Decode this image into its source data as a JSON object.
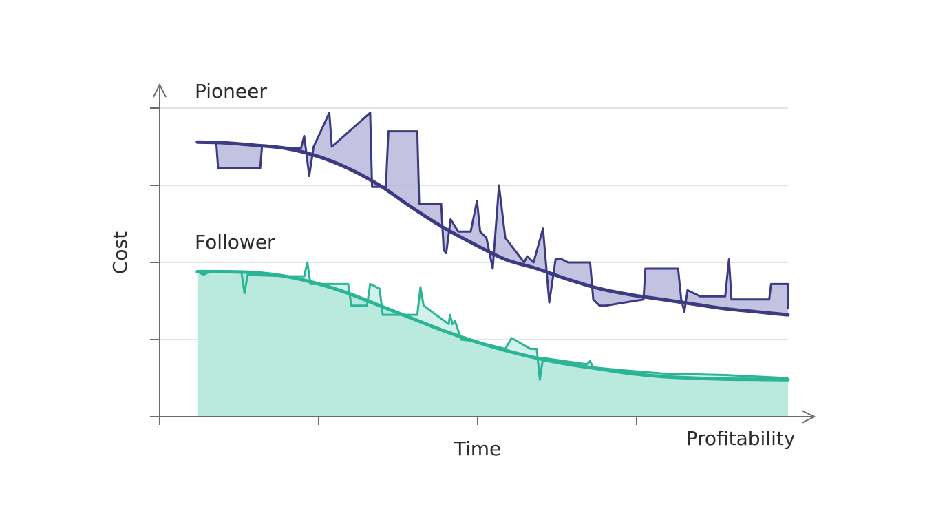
{
  "chart_data": {
    "type": "line",
    "title": "",
    "xlabel": "Time",
    "ylabel": "Cost",
    "corner_label": "Profitability",
    "xlim": [
      0,
      100
    ],
    "ylim": [
      0,
      100
    ],
    "x_tick_count": 4,
    "y_gridlines": 4,
    "grid": true,
    "series": [
      {
        "name": "Pioneer",
        "role": "trend",
        "color": "#3c3a80",
        "fill": "#b9b7dc",
        "x": [
          6,
          10,
          15,
          20,
          25,
          30,
          35,
          40,
          45,
          50,
          55,
          60,
          65,
          70,
          75,
          80,
          85,
          90,
          95,
          100
        ],
        "y": [
          89,
          88.8,
          88,
          87,
          84.5,
          80.5,
          75,
          68,
          61.5,
          56,
          51,
          48,
          44.5,
          41.5,
          39.5,
          38,
          36.5,
          35,
          34,
          33
        ],
        "actual": {
          "x": [
            6,
            9,
            9.3,
            16,
            16.3,
            17,
            22.5,
            23,
            23.8,
            24.5,
            27,
            27.4,
            33.5,
            33.8,
            36,
            36.4,
            41,
            41.3,
            44.8,
            45.2,
            45.6,
            46.3,
            47.5,
            49.5,
            50.5,
            51,
            52,
            53,
            54,
            55,
            58,
            58.5,
            59.5,
            61,
            62,
            63,
            64,
            65,
            68.5,
            69,
            70,
            71,
            77,
            77.3,
            82.5,
            83,
            83.5,
            84,
            86,
            90,
            90.6,
            91,
            97,
            97.3,
            100,
            100
          ],
          "y": [
            89,
            89,
            80.5,
            80.5,
            88,
            87.5,
            87,
            91,
            78,
            87.5,
            98.5,
            87.5,
            98.5,
            74.5,
            74.5,
            92.5,
            92.5,
            69,
            69,
            54,
            53,
            64,
            60,
            60,
            70,
            60,
            58,
            48,
            75,
            58,
            50,
            52,
            50,
            61,
            37,
            51,
            51,
            50,
            50,
            38,
            36,
            36,
            38,
            48,
            48,
            38,
            34,
            41,
            39,
            39,
            51,
            38,
            38,
            43,
            43,
            35
          ]
        }
      },
      {
        "name": "Follower",
        "role": "trend",
        "color": "#2bb596",
        "fill": "#b6e8dc",
        "x": [
          6,
          10,
          15,
          20,
          25,
          30,
          35,
          40,
          45,
          50,
          55,
          60,
          65,
          70,
          75,
          80,
          85,
          90,
          95,
          100
        ],
        "y": [
          47,
          47,
          46.7,
          45.5,
          43.2,
          40,
          36,
          32,
          28,
          24.5,
          21.5,
          19,
          17,
          15.5,
          14,
          13,
          12.5,
          12.2,
          12.1,
          12
        ],
        "actual": {
          "x": [
            6,
            7,
            8,
            13,
            13.5,
            14,
            20,
            23,
            23.5,
            24,
            30,
            30.5,
            33,
            33.5,
            35,
            35.5,
            40,
            41,
            41.5,
            42,
            46,
            46.2,
            46.6,
            47,
            48,
            50,
            55,
            56,
            59,
            60,
            60.5,
            61,
            68,
            68.5,
            69,
            74,
            80,
            90,
            100
          ],
          "y": [
            47,
            46,
            47,
            47,
            40,
            46,
            45.5,
            45.5,
            50,
            43,
            43,
            36,
            36,
            43,
            41.5,
            33,
            33,
            33,
            42,
            36,
            30,
            33,
            30,
            31,
            25,
            24.5,
            22,
            25.5,
            22,
            22,
            12,
            19,
            17,
            18,
            16,
            15,
            14,
            13.5,
            12.5
          ]
        }
      }
    ]
  }
}
